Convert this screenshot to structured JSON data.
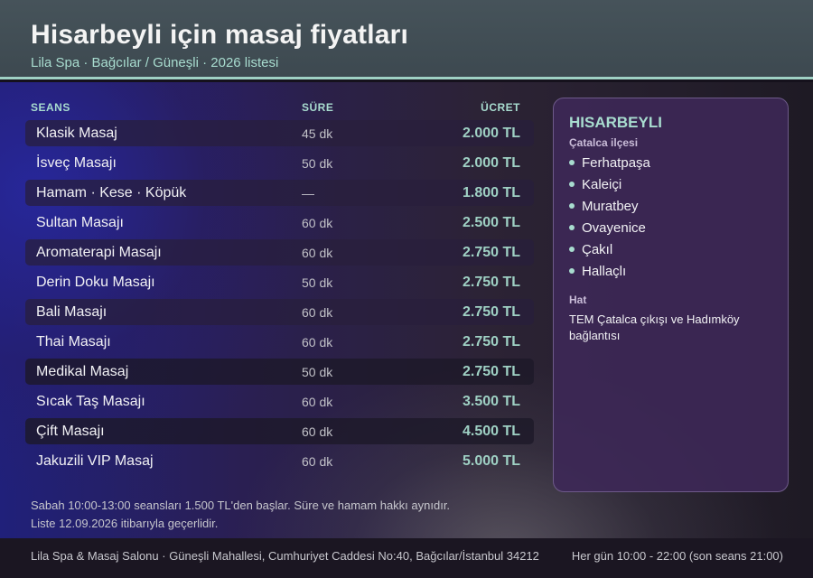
{
  "header": {
    "title": "Hisarbeyli için masaj fiyatları",
    "subtitle": "Lila Spa · Bağcılar / Güneşli · 2026 listesi"
  },
  "table": {
    "columns": [
      "SEANS",
      "SÜRE",
      "ÜCRET"
    ],
    "rows": [
      {
        "name": "Klasik Masaj",
        "duration": "45 dk",
        "price": "2.000 TL"
      },
      {
        "name": "İsveç Masajı",
        "duration": "50 dk",
        "price": "2.000 TL"
      },
      {
        "name": "Hamam · Kese · Köpük",
        "duration": "—",
        "price": "1.800 TL"
      },
      {
        "name": "Sultan Masajı",
        "duration": "60 dk",
        "price": "2.500 TL"
      },
      {
        "name": "Aromaterapi Masajı",
        "duration": "60 dk",
        "price": "2.750 TL"
      },
      {
        "name": "Derin Doku Masajı",
        "duration": "50 dk",
        "price": "2.750 TL"
      },
      {
        "name": "Bali Masajı",
        "duration": "60 dk",
        "price": "2.750 TL"
      },
      {
        "name": "Thai Masajı",
        "duration": "60 dk",
        "price": "2.750 TL"
      },
      {
        "name": "Medikal Masaj",
        "duration": "50 dk",
        "price": "2.750 TL"
      },
      {
        "name": "Sıcak Taş Masajı",
        "duration": "60 dk",
        "price": "3.500 TL"
      },
      {
        "name": "Çift Masajı",
        "duration": "60 dk",
        "price": "4.500 TL"
      },
      {
        "name": "Jakuzili VIP Masaj",
        "duration": "60 dk",
        "price": "5.000 TL"
      }
    ]
  },
  "panel": {
    "title": "HISARBEYLI",
    "subtitle": "Çatalca ilçesi",
    "items": [
      "Ferhatpaşa",
      "Kaleiçi",
      "Muratbey",
      "Ovayenice",
      "Çakıl",
      "Hallaçlı"
    ],
    "hat_label": "Hat",
    "hat_text": "TEM Çatalca çıkışı ve Hadımköy bağlantısı"
  },
  "notes": [
    "Sabah 10:00-13:00 seansları 1.500 TL'den başlar. Süre ve hamam hakkı aynıdır.",
    "Liste 12.09.2026 itibarıyla geçerlidir."
  ],
  "footer": {
    "address": "Lila Spa & Masaj Salonu · Güneşli Mahallesi, Cumhuriyet Caddesi No:40, Bağcılar/İstanbul 34212",
    "hours": "Her gün 10:00 - 22:00 (son seans 21:00)"
  },
  "colors": {
    "accent": "#9fd1c4",
    "header_bg": "#46535a",
    "panel_bg": "#3e2858",
    "footer_bg": "#1b1622"
  }
}
